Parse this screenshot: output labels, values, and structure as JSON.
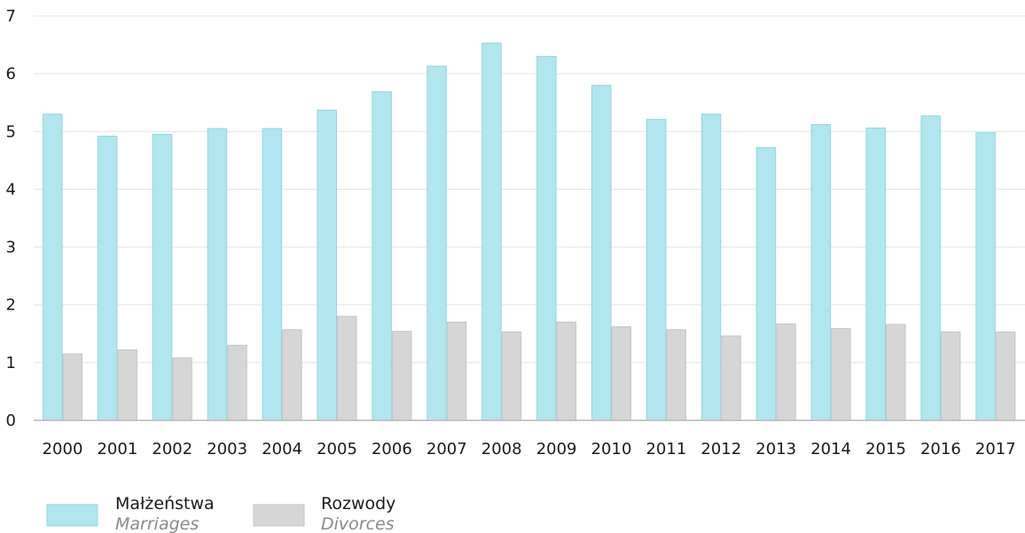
{
  "chart_data": {
    "type": "bar",
    "categories": [
      "2000",
      "2001",
      "2002",
      "2003",
      "2004",
      "2005",
      "2006",
      "2007",
      "2008",
      "2009",
      "2010",
      "2011",
      "2012",
      "2013",
      "2014",
      "2015",
      "2016",
      "2017"
    ],
    "series": [
      {
        "name": "Małżeństwa",
        "name_en": "Marriages",
        "color": "#b2e6ef",
        "border": "#8fd6e3",
        "values": [
          5.3,
          4.92,
          4.95,
          5.05,
          5.05,
          5.37,
          5.69,
          6.13,
          6.53,
          6.3,
          5.8,
          5.21,
          5.3,
          4.72,
          5.12,
          5.06,
          5.27,
          4.98
        ]
      },
      {
        "name": "Rozwody",
        "name_en": "Divorces",
        "color": "#d6d6d6",
        "border": "#c4c4c4",
        "values": [
          1.15,
          1.22,
          1.08,
          1.3,
          1.57,
          1.8,
          1.54,
          1.7,
          1.53,
          1.7,
          1.62,
          1.57,
          1.46,
          1.67,
          1.59,
          1.66,
          1.53,
          1.53
        ]
      }
    ],
    "yticks": [
      "0",
      "1",
      "2",
      "3",
      "4",
      "5",
      "6",
      "7"
    ],
    "ylim": [
      0,
      7
    ],
    "grid": true,
    "legend": "bottom-left"
  }
}
